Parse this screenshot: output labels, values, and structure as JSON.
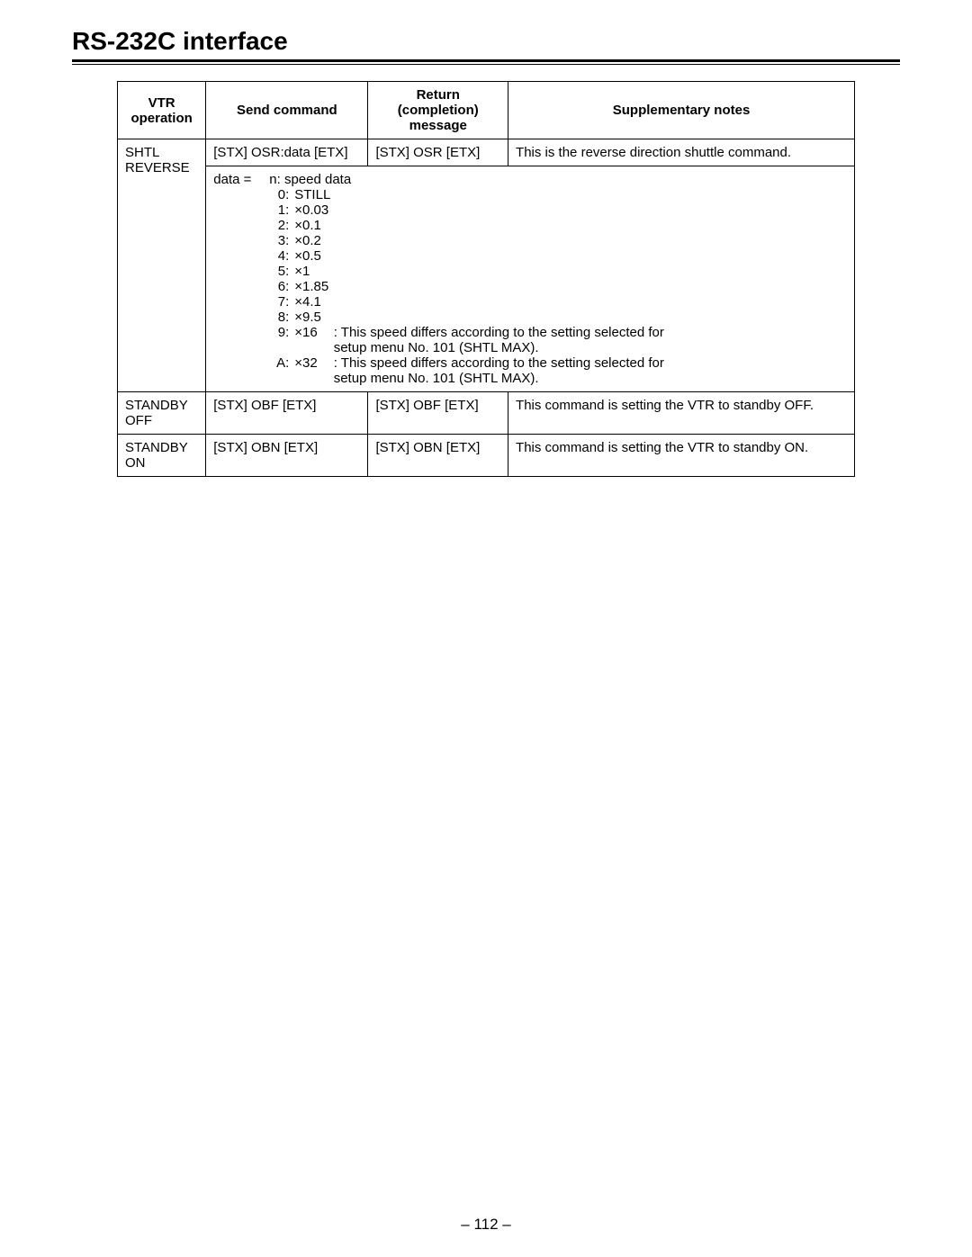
{
  "page": {
    "title": "RS-232C interface",
    "number": "– 112 –"
  },
  "table": {
    "headers": {
      "op_line1": "VTR",
      "op_line2": "operation",
      "send": "Send command",
      "ret_line1": "Return (completion)",
      "ret_line2": "message",
      "note": "Supplementary notes"
    },
    "rows": {
      "shtl_rev": {
        "op_line1": "SHTL",
        "op_line2": "REVERSE",
        "send": "[STX] OSR:data [ETX]",
        "ret": "[STX] OSR [ETX]",
        "note": "This is the reverse direction shuttle command."
      },
      "speed": {
        "intro_key": "data =",
        "intro_val": "n:  speed data",
        "items": [
          {
            "k": "0:",
            "v": "STILL"
          },
          {
            "k": "1:",
            "v": "×0.03"
          },
          {
            "k": "2:",
            "v": "×0.1"
          },
          {
            "k": "3:",
            "v": "×0.2"
          },
          {
            "k": "4:",
            "v": "×0.5"
          },
          {
            "k": "5:",
            "v": "×1"
          },
          {
            "k": "6:",
            "v": "×1.85"
          },
          {
            "k": "7:",
            "v": "×4.1"
          },
          {
            "k": "8:",
            "v": "×9.5"
          },
          {
            "k": "9:",
            "v": "×16",
            "note1": ": This speed differs according to the setting selected for",
            "note2": "setup menu No. 101 (SHTL MAX)."
          },
          {
            "k": "A:",
            "v": "×32",
            "note1": ": This speed differs according to the setting selected for",
            "note2": "setup menu No. 101 (SHTL MAX)."
          }
        ]
      },
      "standby_off": {
        "op_line1": "STANDBY",
        "op_line2": "OFF",
        "send": "[STX] OBF [ETX]",
        "ret": "[STX] OBF [ETX]",
        "note": "This command is setting the VTR to standby OFF."
      },
      "standby_on": {
        "op_line1": "STANDBY",
        "op_line2": "ON",
        "send": "[STX] OBN [ETX]",
        "ret": "[STX] OBN [ETX]",
        "note": "This command is setting the VTR to standby ON."
      }
    }
  }
}
